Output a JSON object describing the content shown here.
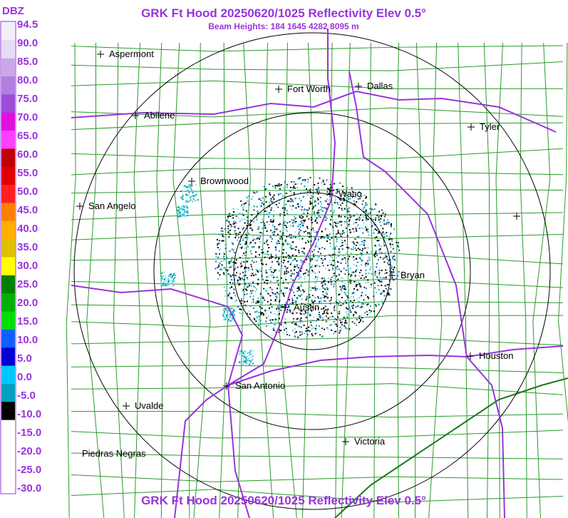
{
  "header": {
    "title": "GRK Ft Hood 20250620/1025 Reflectivity Elev 0.5°",
    "subtitle": "Beam Heights: 184 1645 4282 8095 m"
  },
  "legend": {
    "title": "DBZ",
    "labels": [
      "94.5",
      "90.0",
      "85.0",
      "80.0",
      "75.0",
      "70.0",
      "65.0",
      "60.0",
      "55.0",
      "50.0",
      "45.0",
      "40.0",
      "35.0",
      "30.0",
      "25.0",
      "20.0",
      "15.0",
      "10.0",
      "5.0",
      "0.0",
      "-5.0",
      "-10.0",
      "-15.0",
      "-20.0",
      "-25.0",
      "-30.0"
    ]
  },
  "cities": [
    "Aspermont",
    "Fort Worth",
    "Dallas",
    "Abilene",
    "Tyler",
    "Brownwood",
    "Waco",
    "San Angelo",
    "Bryan",
    "Austin",
    "Houston",
    "San Antonio",
    "Uvalde",
    "Victoria",
    "Piedras Negras"
  ],
  "footer": {
    "title": "GRK Ft Hood 20250620/1025 Reflectivity Elev 0.5°"
  }
}
